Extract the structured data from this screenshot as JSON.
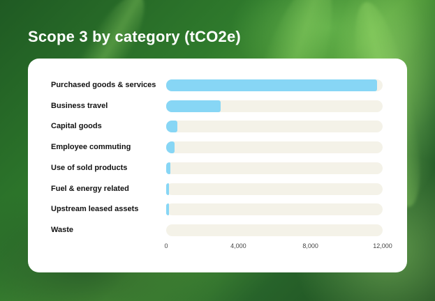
{
  "title": "Scope 3 by category (tCO2e)",
  "colors": {
    "bar": "#87d6f5",
    "track": "#f4f2e8",
    "card": "#ffffff"
  },
  "chart_data": {
    "type": "bar",
    "orientation": "horizontal",
    "title": "Scope 3 by category (tCO2e)",
    "categories": [
      "Purchased goods & services",
      "Business travel",
      "Capital goods",
      "Employee commuting",
      "Use of sold products",
      "Fuel & energy related",
      "Upstream leased assets",
      "Waste"
    ],
    "values": [
      11700,
      3000,
      600,
      450,
      250,
      150,
      120,
      0
    ],
    "xlim": [
      0,
      12000
    ],
    "xticks": [
      0,
      4000,
      8000,
      12000
    ],
    "xtick_labels": [
      "0",
      "4,000",
      "8,000",
      "12,000"
    ],
    "grid": false,
    "legend": "none"
  }
}
